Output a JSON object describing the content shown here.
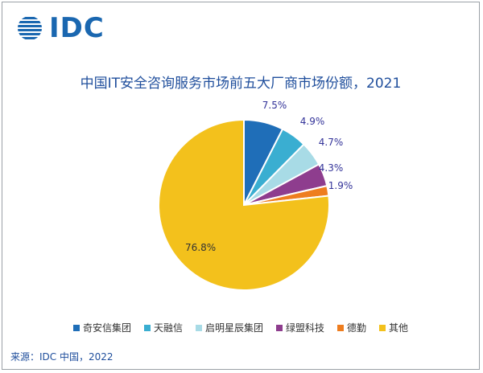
{
  "logo": {
    "text": "IDC",
    "name": "idc-logo"
  },
  "chart_data": {
    "type": "pie",
    "title": "中国IT安全咨询服务市场前五大厂商市场份额，2021",
    "slices": [
      {
        "name": "奇安信集团",
        "value": 7.5,
        "label": "7.5%",
        "color": "#1f6eb8"
      },
      {
        "name": "天融信",
        "value": 4.9,
        "label": "4.9%",
        "color": "#3aaed1"
      },
      {
        "name": "启明星辰集团",
        "value": 4.7,
        "label": "4.7%",
        "color": "#a8dbe6"
      },
      {
        "name": "绿盟科技",
        "value": 4.3,
        "label": "4.3%",
        "color": "#8e3d8e"
      },
      {
        "name": "德勤",
        "value": 1.9,
        "label": "1.9%",
        "color": "#ee7d1f"
      },
      {
        "name": "其他",
        "value": 76.8,
        "label": "76.8%",
        "color": "#f3c11c"
      }
    ],
    "legend_position": "bottom"
  },
  "source": "来源：IDC 中国，2022"
}
